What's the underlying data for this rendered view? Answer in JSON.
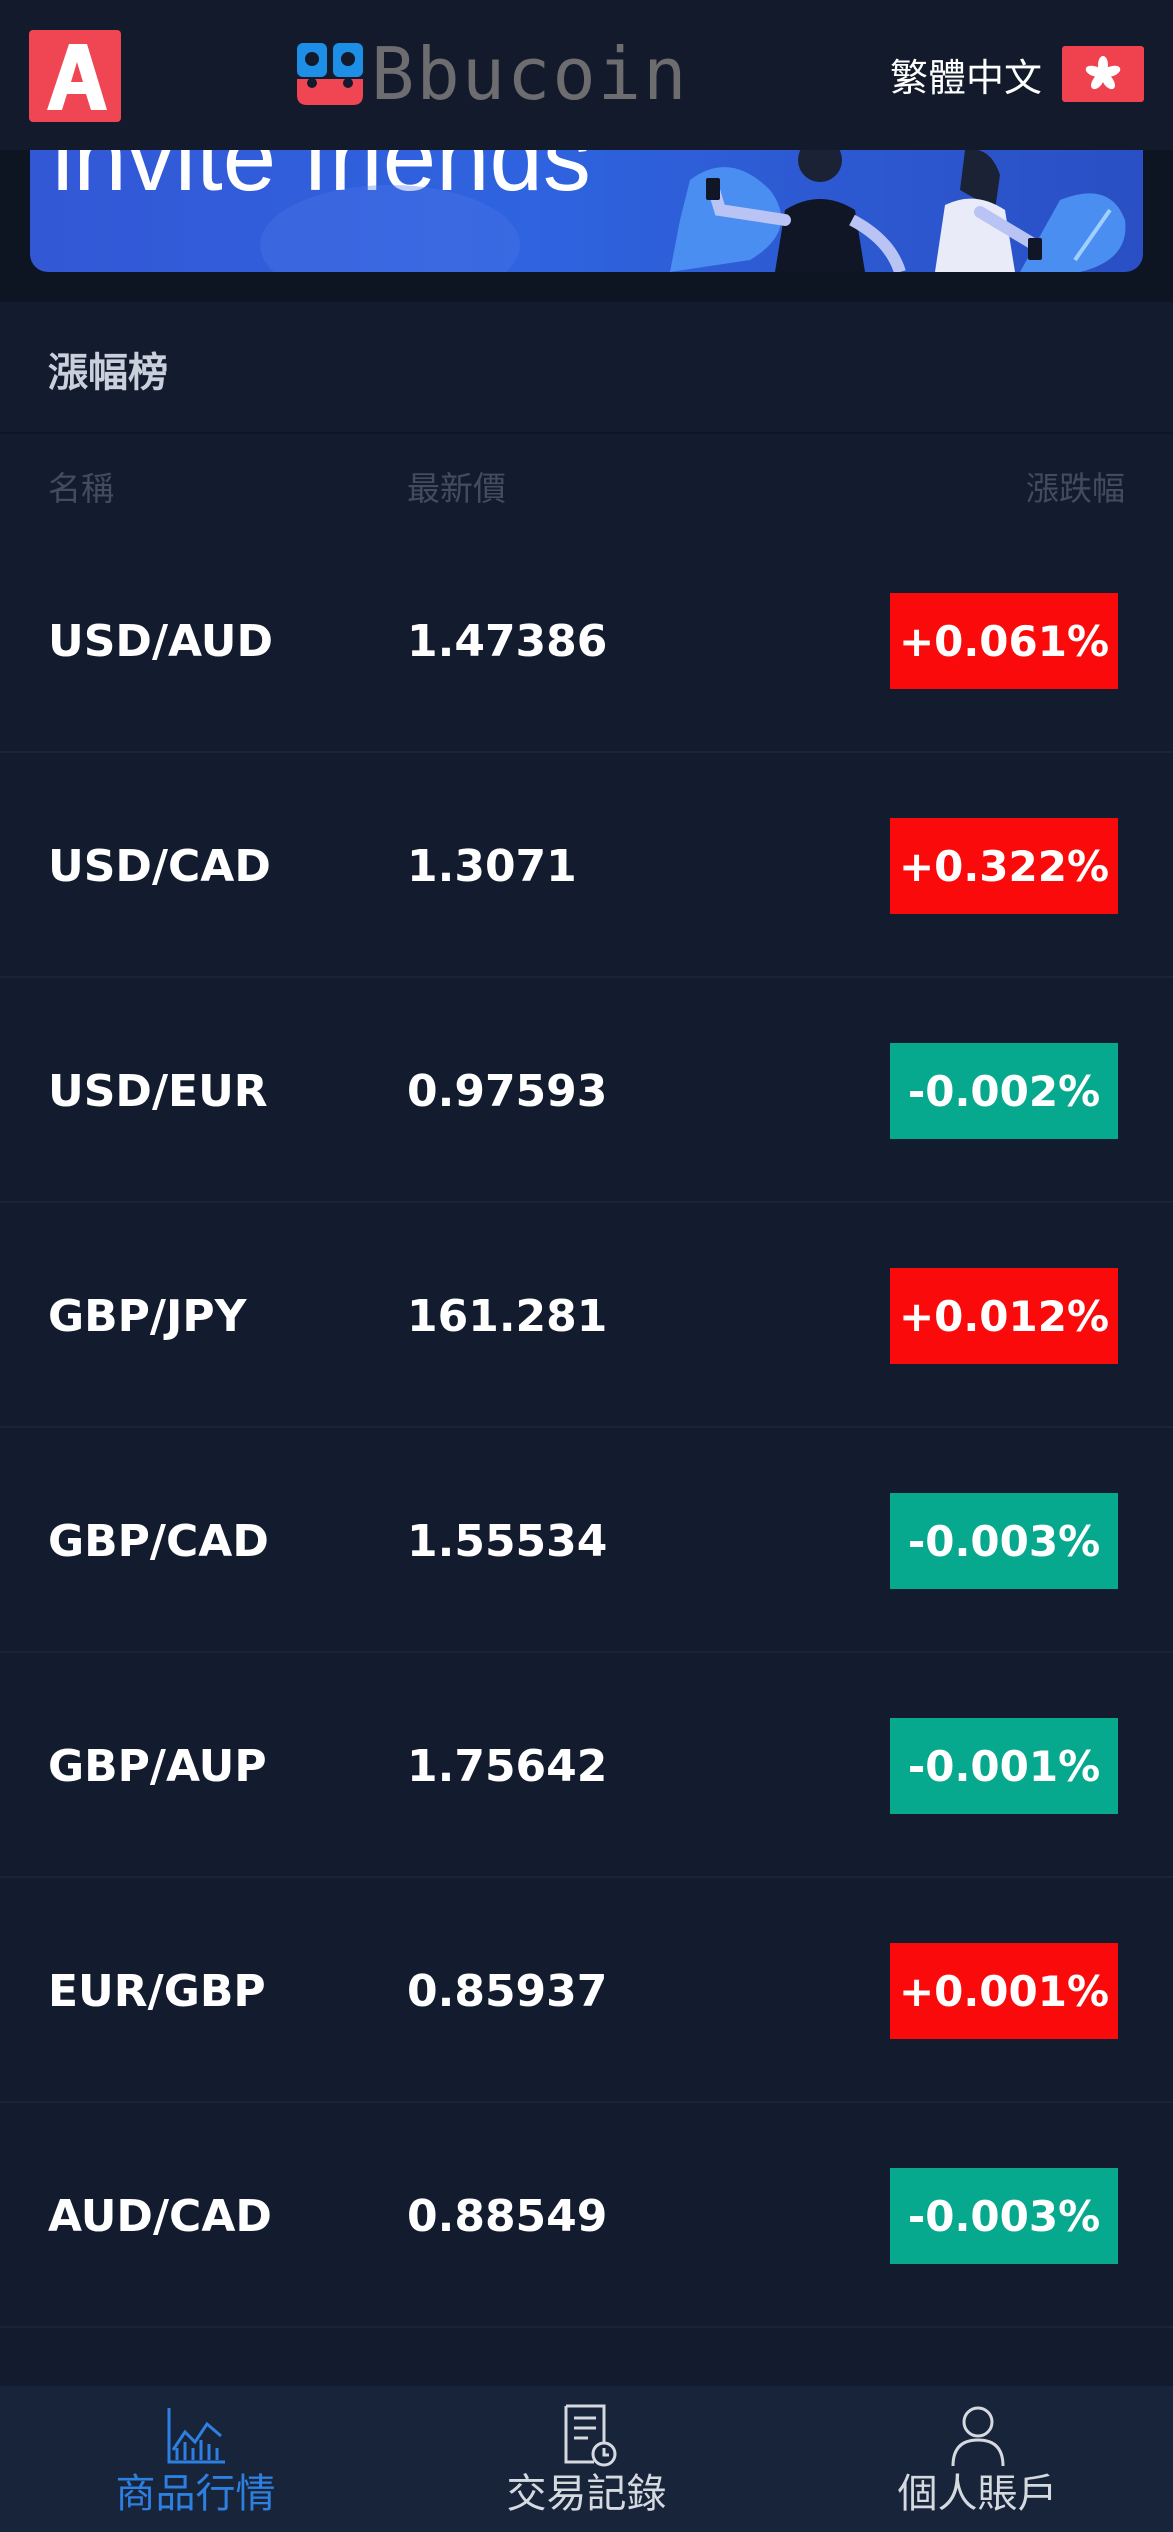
{
  "header": {
    "brand_name": "Bbucoin",
    "language_label": "繁體中文"
  },
  "banner": {
    "text": "invite friends"
  },
  "section": {
    "title": "漲幅榜"
  },
  "columns": {
    "name": "名稱",
    "price": "最新價",
    "change": "漲跌幅"
  },
  "rows": [
    {
      "pair": "USD/AUD",
      "price": "1.47386",
      "change": "+0.061%",
      "direction": "up"
    },
    {
      "pair": "USD/CAD",
      "price": "1.3071",
      "change": "+0.322%",
      "direction": "up"
    },
    {
      "pair": "USD/EUR",
      "price": "0.97593",
      "change": "-0.002%",
      "direction": "down"
    },
    {
      "pair": "GBP/JPY",
      "price": "161.281",
      "change": "+0.012%",
      "direction": "up"
    },
    {
      "pair": "GBP/CAD",
      "price": "1.55534",
      "change": "-0.003%",
      "direction": "down"
    },
    {
      "pair": "GBP/AUP",
      "price": "1.75642",
      "change": "-0.001%",
      "direction": "down"
    },
    {
      "pair": "EUR/GBP",
      "price": "0.85937",
      "change": "+0.001%",
      "direction": "up"
    },
    {
      "pair": "AUD/CAD",
      "price": "0.88549",
      "change": "-0.003%",
      "direction": "down"
    }
  ],
  "colors": {
    "up": "#fa0a0a",
    "down": "#06a98d",
    "active_nav": "#2d7fe0"
  },
  "nav": {
    "items": [
      {
        "label": "商品行情",
        "icon": "chart-icon",
        "active": true
      },
      {
        "label": "交易記錄",
        "icon": "document-clock-icon",
        "active": false
      },
      {
        "label": "個人賬戶",
        "icon": "person-icon",
        "active": false
      }
    ]
  }
}
